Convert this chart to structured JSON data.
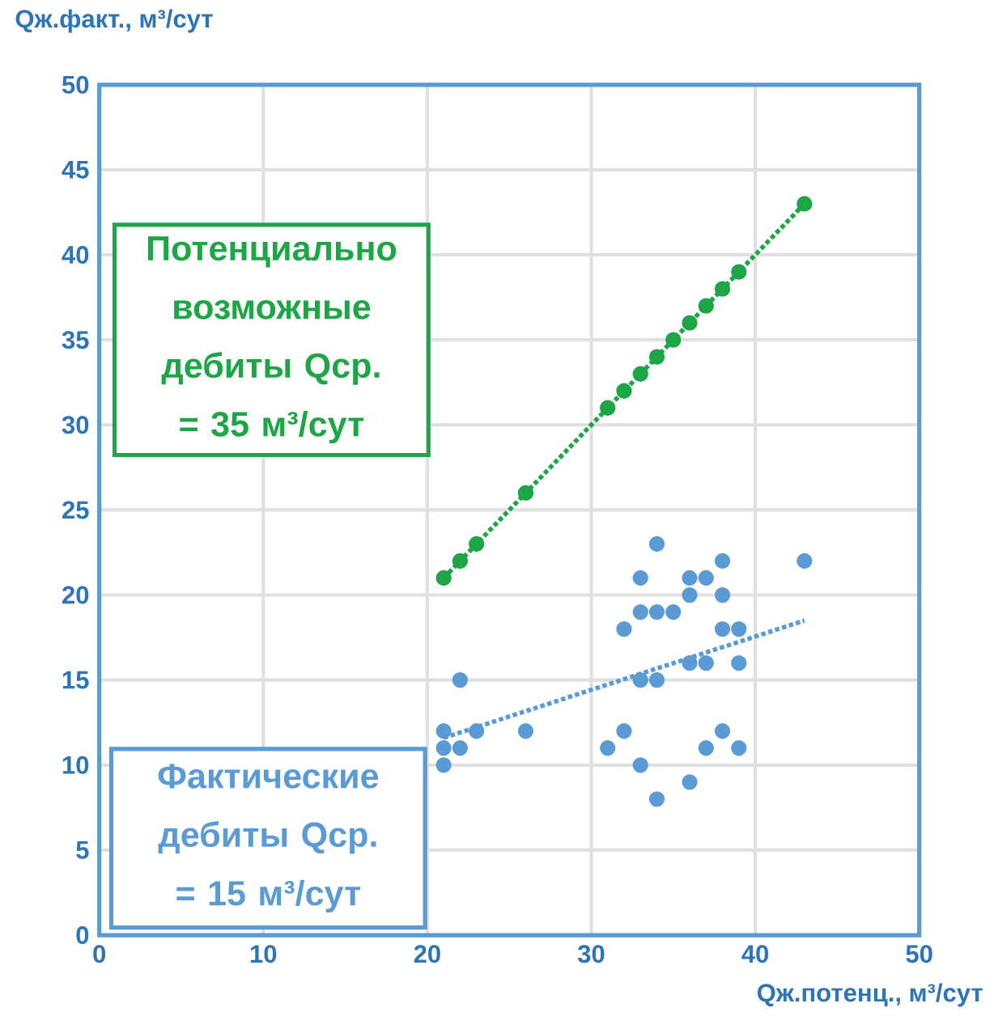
{
  "chart_data": {
    "type": "scatter",
    "xlabel": "Qж.потенц., м³/сут",
    "ylabel": "Qж.факт., м³/сут",
    "xlim": [
      0,
      50
    ],
    "ylim": [
      0,
      50
    ],
    "xticks": [
      0,
      10,
      20,
      30,
      40,
      50
    ],
    "yticks": [
      0,
      5,
      10,
      15,
      20,
      25,
      30,
      35,
      40,
      45,
      50
    ],
    "grid": true,
    "series": [
      {
        "marker": "circle",
        "color": "#1ca645",
        "x": [
          21,
          22,
          23,
          26,
          31,
          32,
          33,
          34,
          35,
          36,
          37,
          38,
          39,
          43
        ],
        "values": [
          21,
          22,
          23,
          26,
          31,
          32,
          33,
          34,
          35,
          36,
          37,
          38,
          39,
          43
        ]
      },
      {
        "type": "line",
        "marker": "none",
        "line_style": "dotted",
        "color": "#1ca645",
        "x": [
          21,
          43
        ],
        "values": [
          21,
          43
        ]
      },
      {
        "marker": "circle",
        "color": "#5b9bd5",
        "x": [
          21,
          21,
          21,
          22,
          22,
          23,
          26,
          31,
          32,
          32,
          33,
          33,
          33,
          33,
          34,
          34,
          34,
          34,
          35,
          36,
          36,
          36,
          36,
          37,
          37,
          37,
          38,
          38,
          38,
          38,
          39,
          39,
          39,
          43
        ],
        "values": [
          12,
          11,
          10,
          15,
          11,
          12,
          12,
          11,
          18,
          12,
          21,
          19,
          15,
          10,
          23,
          19,
          15,
          8,
          19,
          21,
          20,
          16,
          9,
          21,
          16,
          11,
          22,
          20,
          18,
          12,
          18,
          16,
          11,
          22
        ]
      },
      {
        "type": "line",
        "marker": "none",
        "line_style": "dotted",
        "color": "#5b9bd5",
        "x": [
          21,
          43
        ],
        "values": [
          11.6,
          18.5
        ]
      }
    ],
    "annotations": [
      "Потенциально возможные дебиты Qср. = 35 м³/сут",
      "Фактические дебиты Qср. = 15 м³/сут"
    ]
  }
}
